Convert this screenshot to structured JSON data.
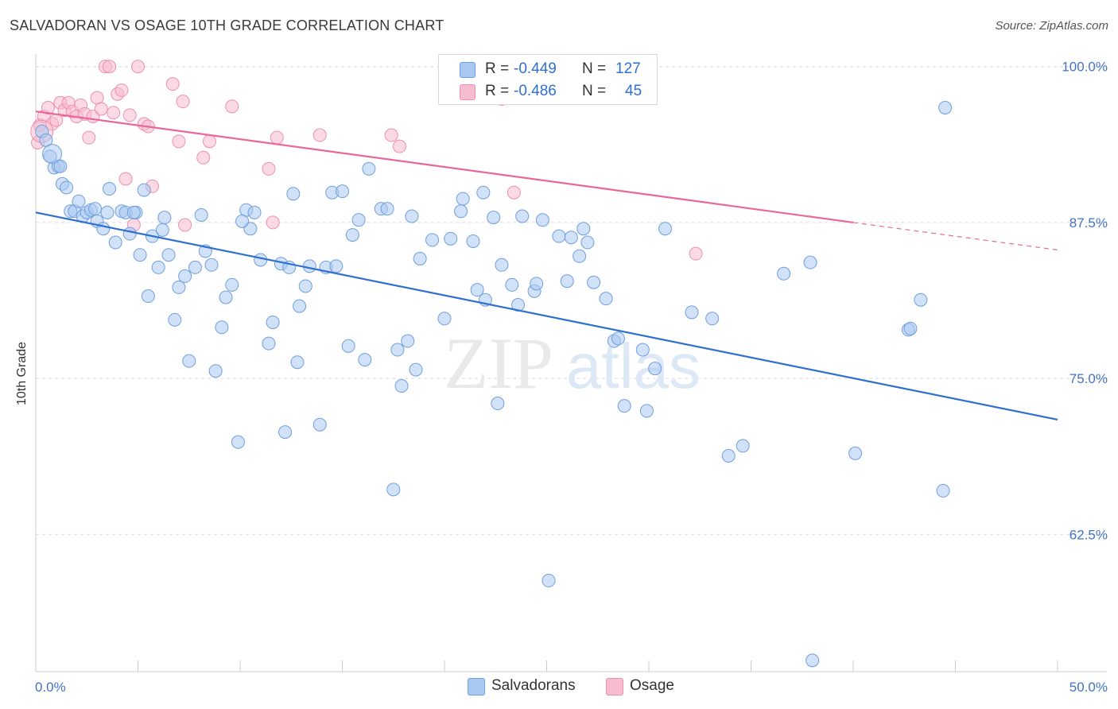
{
  "header": {
    "title": "SALVADORAN VS OSAGE 10TH GRADE CORRELATION CHART",
    "source": "Source: ZipAtlas.com"
  },
  "watermark": {
    "zip": "ZIP",
    "atlas": "atlas"
  },
  "legend": {
    "rows": [
      {
        "r_label": "R =",
        "r_value": "-0.449",
        "n_label": "N =",
        "n_value": "127"
      },
      {
        "r_label": "R =",
        "r_value": "-0.486",
        "n_label": "N =",
        "n_value": "45"
      }
    ]
  },
  "bottom_legend": {
    "salvadorans": "Salvadorans",
    "osage": "Osage"
  },
  "colors": {
    "salvadorans_fill": "#a9c8f2",
    "salvadorans_stroke": "#6f9fdc",
    "salvadorans_line": "#2f6fd0",
    "osage_fill": "#f7bcd0",
    "osage_stroke": "#ec8fb0",
    "osage_line": "#e8689a",
    "tick_label": "#4472c4",
    "grid": "#dcdcdc"
  },
  "chart_data": {
    "type": "scatter",
    "title": "SALVADORAN VS OSAGE 10TH GRADE CORRELATION CHART",
    "xlabel": "",
    "ylabel": "10th Grade",
    "xlim": [
      0,
      50
    ],
    "ylim": [
      51.5,
      101
    ],
    "x_tick_labels": [
      "0.0%",
      "50.0%"
    ],
    "y_ticks": [
      62.5,
      75.0,
      87.5,
      100.0
    ],
    "y_tick_labels": [
      "62.5%",
      "75.0%",
      "87.5%",
      "100.0%"
    ],
    "grid": true,
    "legend_position": "top-center",
    "series": [
      {
        "name": "Salvadorans",
        "r": -0.449,
        "n": 127,
        "trend": {
          "x0": 0,
          "y0": 88.3,
          "x1": 50,
          "y1": 71.7
        },
        "points": [
          [
            0.3,
            94.8
          ],
          [
            0.5,
            94.1
          ],
          [
            0.7,
            92.8
          ],
          [
            0.9,
            91.9
          ],
          [
            1.1,
            92.0
          ],
          [
            1.3,
            90.6
          ],
          [
            1.5,
            90.3
          ],
          [
            1.7,
            88.4
          ],
          [
            1.9,
            88.4
          ],
          [
            2.1,
            89.2
          ],
          [
            2.3,
            88.0
          ],
          [
            2.5,
            88.3
          ],
          [
            2.7,
            88.5
          ],
          [
            3.0,
            87.6
          ],
          [
            3.3,
            87.0
          ],
          [
            3.6,
            90.2
          ],
          [
            3.9,
            85.9
          ],
          [
            4.2,
            88.4
          ],
          [
            4.4,
            88.3
          ],
          [
            4.6,
            86.6
          ],
          [
            4.9,
            88.3
          ],
          [
            5.1,
            84.9
          ],
          [
            5.3,
            90.1
          ],
          [
            5.5,
            81.6
          ],
          [
            5.7,
            86.4
          ],
          [
            6.0,
            83.9
          ],
          [
            6.3,
            87.9
          ],
          [
            6.5,
            84.9
          ],
          [
            6.8,
            79.7
          ],
          [
            7.0,
            82.3
          ],
          [
            7.3,
            83.2
          ],
          [
            7.5,
            76.4
          ],
          [
            7.8,
            83.9
          ],
          [
            8.1,
            88.1
          ],
          [
            8.3,
            85.2
          ],
          [
            8.6,
            84.1
          ],
          [
            8.8,
            75.6
          ],
          [
            9.1,
            79.1
          ],
          [
            9.3,
            81.5
          ],
          [
            9.6,
            82.5
          ],
          [
            9.9,
            69.9
          ],
          [
            10.3,
            88.5
          ],
          [
            10.5,
            87.0
          ],
          [
            10.7,
            88.3
          ],
          [
            11.0,
            84.5
          ],
          [
            11.4,
            77.8
          ],
          [
            11.6,
            79.5
          ],
          [
            12.0,
            84.2
          ],
          [
            12.2,
            70.7
          ],
          [
            12.4,
            83.9
          ],
          [
            12.6,
            89.8
          ],
          [
            12.8,
            76.3
          ],
          [
            12.9,
            80.8
          ],
          [
            13.2,
            82.4
          ],
          [
            13.4,
            84.0
          ],
          [
            13.9,
            71.3
          ],
          [
            14.2,
            83.9
          ],
          [
            14.5,
            89.9
          ],
          [
            14.7,
            84.0
          ],
          [
            15.0,
            90.0
          ],
          [
            15.3,
            77.6
          ],
          [
            15.5,
            86.5
          ],
          [
            15.8,
            87.7
          ],
          [
            16.1,
            76.5
          ],
          [
            16.3,
            91.8
          ],
          [
            16.9,
            88.6
          ],
          [
            17.2,
            88.6
          ],
          [
            17.5,
            66.1
          ],
          [
            17.7,
            77.3
          ],
          [
            17.9,
            74.4
          ],
          [
            18.2,
            78.0
          ],
          [
            18.4,
            88.0
          ],
          [
            18.6,
            75.7
          ],
          [
            18.8,
            84.6
          ],
          [
            19.4,
            86.1
          ],
          [
            20.0,
            79.8
          ],
          [
            20.3,
            86.2
          ],
          [
            20.8,
            88.4
          ],
          [
            20.9,
            89.4
          ],
          [
            21.4,
            86.0
          ],
          [
            21.6,
            82.1
          ],
          [
            21.9,
            89.9
          ],
          [
            22.0,
            81.3
          ],
          [
            22.4,
            87.9
          ],
          [
            22.6,
            73.0
          ],
          [
            22.8,
            84.1
          ],
          [
            23.3,
            82.5
          ],
          [
            23.6,
            80.9
          ],
          [
            23.8,
            88.0
          ],
          [
            24.4,
            82.0
          ],
          [
            24.5,
            82.6
          ],
          [
            24.8,
            87.7
          ],
          [
            25.6,
            86.4
          ],
          [
            26.0,
            82.8
          ],
          [
            26.2,
            86.3
          ],
          [
            26.6,
            84.8
          ],
          [
            26.8,
            87.0
          ],
          [
            27.0,
            85.9
          ],
          [
            27.3,
            82.7
          ],
          [
            25.1,
            58.8
          ],
          [
            27.9,
            81.4
          ],
          [
            28.3,
            78.0
          ],
          [
            28.5,
            78.2
          ],
          [
            28.8,
            72.8
          ],
          [
            29.7,
            77.3
          ],
          [
            29.9,
            72.4
          ],
          [
            30.3,
            75.8
          ],
          [
            30.8,
            87.0
          ],
          [
            32.1,
            80.3
          ],
          [
            33.1,
            79.8
          ],
          [
            33.9,
            68.8
          ],
          [
            34.6,
            69.6
          ],
          [
            36.6,
            83.4
          ],
          [
            37.9,
            84.3
          ],
          [
            38.0,
            52.4
          ],
          [
            40.1,
            69.0
          ],
          [
            42.7,
            78.9
          ],
          [
            43.3,
            81.3
          ],
          [
            44.4,
            66.0
          ],
          [
            42.8,
            79.0
          ],
          [
            44.5,
            96.7
          ],
          [
            1.2,
            92.0
          ],
          [
            4.8,
            88.3
          ],
          [
            3.5,
            88.3
          ],
          [
            6.2,
            86.9
          ],
          [
            2.9,
            88.6
          ],
          [
            10.1,
            87.6
          ]
        ]
      },
      {
        "name": "Osage",
        "r": -0.486,
        "n": 45,
        "trend": {
          "x0": 0,
          "y0": 96.4,
          "x1": 40,
          "y1": 87.5,
          "dash_x1": 50,
          "dash_y1": 85.3
        },
        "points": [
          [
            0.1,
            93.9
          ],
          [
            0.2,
            95.3
          ],
          [
            0.4,
            96.0
          ],
          [
            0.6,
            96.7
          ],
          [
            0.8,
            95.4
          ],
          [
            1.0,
            95.7
          ],
          [
            1.2,
            97.1
          ],
          [
            1.4,
            96.5
          ],
          [
            1.6,
            97.1
          ],
          [
            1.8,
            96.4
          ],
          [
            2.0,
            96.0
          ],
          [
            2.2,
            96.9
          ],
          [
            2.4,
            96.2
          ],
          [
            2.6,
            94.3
          ],
          [
            2.8,
            96.0
          ],
          [
            3.0,
            97.5
          ],
          [
            3.2,
            96.6
          ],
          [
            3.4,
            100.0
          ],
          [
            3.6,
            100.0
          ],
          [
            3.8,
            96.3
          ],
          [
            4.0,
            97.8
          ],
          [
            4.2,
            98.1
          ],
          [
            4.4,
            91.0
          ],
          [
            4.6,
            96.1
          ],
          [
            4.8,
            87.3
          ],
          [
            5.0,
            100.0
          ],
          [
            5.3,
            95.4
          ],
          [
            5.5,
            95.2
          ],
          [
            5.7,
            90.4
          ],
          [
            6.7,
            98.6
          ],
          [
            7.0,
            94.0
          ],
          [
            7.2,
            97.2
          ],
          [
            7.3,
            87.3
          ],
          [
            8.2,
            92.7
          ],
          [
            8.5,
            94.0
          ],
          [
            9.6,
            96.8
          ],
          [
            11.4,
            91.8
          ],
          [
            11.6,
            87.5
          ],
          [
            11.8,
            94.3
          ],
          [
            13.9,
            94.5
          ],
          [
            17.4,
            94.5
          ],
          [
            17.8,
            93.6
          ],
          [
            22.8,
            97.4
          ],
          [
            23.4,
            89.9
          ],
          [
            32.3,
            85.0
          ]
        ]
      }
    ]
  }
}
